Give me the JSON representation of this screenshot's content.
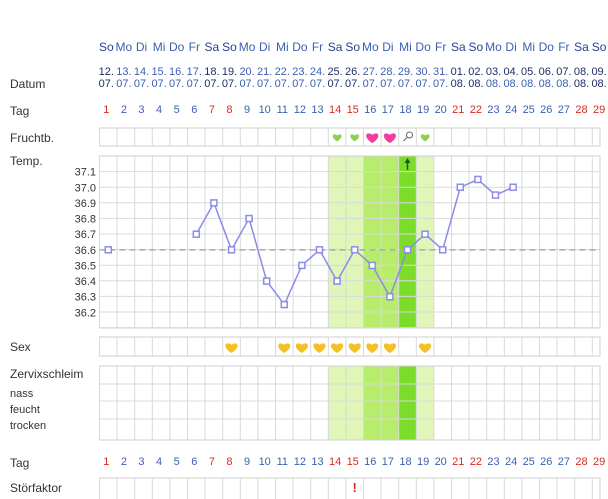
{
  "row_labels": {
    "datum": "Datum",
    "tag": "Tag",
    "fruchtb": "Fruchtb.",
    "temp": "Temp.",
    "sex": "Sex",
    "zervix": "Zervixschleim",
    "nass": "nass",
    "feucht": "feucht",
    "trocken": "trocken",
    "tag2": "Tag",
    "stoer": "Störfaktor"
  },
  "weekdays": [
    "So",
    "Mo",
    "Di",
    "Mi",
    "Do",
    "Fr",
    "Sa",
    "So",
    "Mo",
    "Di",
    "Mi",
    "Do",
    "Fr",
    "Sa",
    "So",
    "Mo",
    "Di",
    "Mi",
    "Do",
    "Fr",
    "Sa",
    "So",
    "Mo",
    "Di",
    "Mi",
    "Do",
    "Fr",
    "Sa",
    "So"
  ],
  "dates_day": [
    "12.",
    "13.",
    "14.",
    "15.",
    "16.",
    "17.",
    "18.",
    "19.",
    "20.",
    "21.",
    "22.",
    "23.",
    "24.",
    "25.",
    "26.",
    "27.",
    "28.",
    "29.",
    "30.",
    "31.",
    "01.",
    "02.",
    "03.",
    "04.",
    "05.",
    "06.",
    "07.",
    "08.",
    "09."
  ],
  "dates_month": [
    "07.",
    "07.",
    "07.",
    "07.",
    "07.",
    "07.",
    "07.",
    "07.",
    "07.",
    "07.",
    "07.",
    "07.",
    "07.",
    "07.",
    "07.",
    "07.",
    "07.",
    "07.",
    "07.",
    "07.",
    "08.",
    "08.",
    "08.",
    "08.",
    "08.",
    "08.",
    "08.",
    "08.",
    "08."
  ],
  "cycle_days": [
    "1",
    "2",
    "3",
    "4",
    "5",
    "6",
    "7",
    "8",
    "9",
    "10",
    "11",
    "12",
    "13",
    "14",
    "15",
    "16",
    "17",
    "18",
    "19",
    "20",
    "21",
    "22",
    "23",
    "24",
    "25",
    "26",
    "27",
    "28",
    "29"
  ],
  "colors": {
    "weekend_red": "#d52b1e",
    "weekday_blue": "#3b5fb0",
    "line": "#8b8be8",
    "baseline": "#aaaaaa",
    "fertile_light": "#dff6b8",
    "fertile_mid": "#b8ec6c",
    "fertile_dark": "#7cdc2a",
    "heart_green": "#8fd14f",
    "heart_pink": "#ee3fa0",
    "sex_heart": "#f5c026"
  },
  "fruchtb_marks": [
    {
      "day": 14,
      "icon": "green-heart-icon"
    },
    {
      "day": 15,
      "icon": "green-heart-icon"
    },
    {
      "day": 16,
      "icon": "pink-heart-icon"
    },
    {
      "day": 17,
      "icon": "pink-heart-icon"
    },
    {
      "day": 18,
      "icon": "ovulation-marker-icon"
    },
    {
      "day": 19,
      "icon": "green-heart-icon"
    }
  ],
  "sex_days": [
    8,
    11,
    12,
    13,
    14,
    15,
    16,
    17,
    19
  ],
  "stoer_marks": [
    {
      "day": 15,
      "symbol": "!"
    }
  ],
  "temp_arrow_day": 18,
  "fertile_window": {
    "light_days": [
      14,
      15,
      19
    ],
    "mid_days": [
      16,
      17
    ],
    "dark_days": [
      18
    ]
  },
  "chart_data": {
    "type": "line",
    "ylim": [
      36.1,
      37.2
    ],
    "y_ticks": [
      "37.1",
      "37.0",
      "36.9",
      "36.8",
      "36.7",
      "36.6",
      "36.5",
      "36.4",
      "36.3",
      "36.2"
    ],
    "coverline": 36.6,
    "x": [
      1,
      6,
      7,
      8,
      9,
      10,
      11,
      12,
      13,
      14,
      15,
      16,
      17,
      18,
      19,
      20,
      21,
      22,
      23,
      24
    ],
    "values": [
      36.6,
      36.7,
      36.9,
      36.6,
      36.8,
      36.4,
      36.25,
      36.5,
      36.6,
      36.4,
      36.6,
      36.5,
      36.3,
      36.6,
      36.7,
      36.6,
      37.0,
      37.05,
      36.95,
      37.0
    ],
    "connected_from_index": 1
  }
}
